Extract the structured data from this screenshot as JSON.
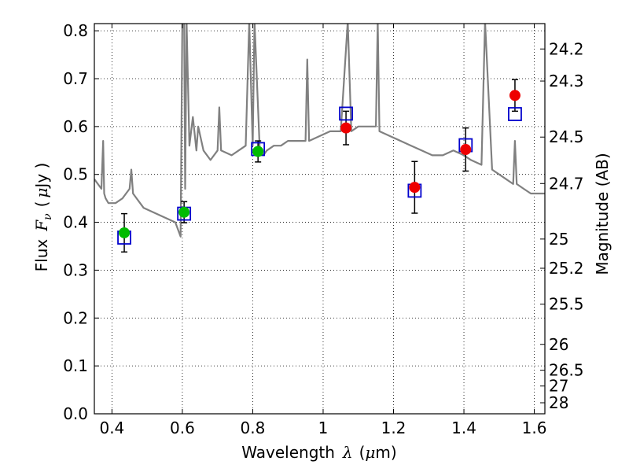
{
  "chart_data": {
    "type": "scatter",
    "xlabel": {
      "prefix": "Wavelength",
      "symbol": "λ",
      "open": "(",
      "mu": "μ",
      "unit": "m)"
    },
    "ylabel": {
      "prefix": "Flux",
      "symbol": "F",
      "sub": "ν",
      "open": "(",
      "mu": "μ",
      "unit": "Jy )"
    },
    "ylabel_right": "Magnitude (AB)",
    "xlim": [
      0.35,
      1.63
    ],
    "ylim": [
      0.0,
      0.815
    ],
    "x_ticks": [
      0.4,
      0.6,
      0.8,
      1.0,
      1.2,
      1.4,
      1.6
    ],
    "x_tick_labels": [
      "0.4",
      "0.6",
      "0.8",
      "1",
      "1.2",
      "1.4",
      "1.6"
    ],
    "y_ticks": [
      0.0,
      0.1,
      0.2,
      0.3,
      0.4,
      0.5,
      0.6,
      0.7,
      0.8
    ],
    "y_tick_labels": [
      "0.0",
      "0.1",
      "0.2",
      "0.3",
      "0.4",
      "0.5",
      "0.6",
      "0.7",
      "0.8"
    ],
    "right_ticks": [
      {
        "label": "24.2",
        "flux": 0.762
      },
      {
        "label": "24.3",
        "flux": 0.695
      },
      {
        "label": "24.5",
        "flux": 0.578
      },
      {
        "label": "24.7",
        "flux": 0.481
      },
      {
        "label": "25",
        "flux": 0.365
      },
      {
        "label": "25.2",
        "flux": 0.304
      },
      {
        "label": "25.5",
        "flux": 0.229
      },
      {
        "label": "26",
        "flux": 0.145
      },
      {
        "label": "26.5",
        "flux": 0.091
      },
      {
        "label": "27",
        "flux": 0.058
      },
      {
        "label": "28",
        "flux": 0.023
      }
    ],
    "grid": true,
    "series": [
      {
        "kind": "model_spectrum",
        "color": "#808080",
        "x": [
          0.35,
          0.36,
          0.37,
          0.375,
          0.378,
          0.382,
          0.39,
          0.41,
          0.43,
          0.44,
          0.45,
          0.455,
          0.46,
          0.47,
          0.49,
          0.52,
          0.55,
          0.58,
          0.595,
          0.6,
          0.605,
          0.608,
          0.612,
          0.62,
          0.63,
          0.64,
          0.645,
          0.66,
          0.68,
          0.7,
          0.705,
          0.71,
          0.74,
          0.76,
          0.78,
          0.79,
          0.8,
          0.805,
          0.82,
          0.83,
          0.84,
          0.86,
          0.88,
          0.9,
          0.92,
          0.95,
          0.955,
          0.96,
          0.99,
          1.02,
          1.05,
          1.07,
          1.08,
          1.1,
          1.12,
          1.15,
          1.155,
          1.16,
          1.19,
          1.22,
          1.25,
          1.28,
          1.31,
          1.34,
          1.37,
          1.4,
          1.42,
          1.45,
          1.46,
          1.48,
          1.5,
          1.52,
          1.54,
          1.545,
          1.55,
          1.57,
          1.59,
          1.61,
          1.63
        ],
        "y": [
          0.49,
          0.48,
          0.47,
          0.57,
          0.46,
          0.45,
          0.44,
          0.44,
          0.45,
          0.46,
          0.47,
          0.51,
          0.46,
          0.45,
          0.43,
          0.42,
          0.41,
          0.4,
          0.37,
          0.82,
          0.82,
          0.47,
          0.82,
          0.56,
          0.62,
          0.55,
          0.6,
          0.55,
          0.53,
          0.55,
          0.64,
          0.55,
          0.54,
          0.55,
          0.56,
          0.82,
          0.56,
          0.82,
          0.55,
          0.54,
          0.55,
          0.56,
          0.56,
          0.57,
          0.57,
          0.57,
          0.74,
          0.57,
          0.58,
          0.59,
          0.59,
          0.82,
          0.59,
          0.6,
          0.6,
          0.6,
          0.82,
          0.59,
          0.58,
          0.57,
          0.56,
          0.55,
          0.54,
          0.54,
          0.55,
          0.54,
          0.53,
          0.52,
          0.82,
          0.51,
          0.5,
          0.49,
          0.48,
          0.57,
          0.48,
          0.47,
          0.46,
          0.46,
          0.46
        ]
      },
      {
        "kind": "model_photometry",
        "marker": "open_square",
        "color": "#0000cc",
        "x": [
          0.435,
          0.605,
          0.815,
          1.065,
          1.26,
          1.405,
          1.545
        ],
        "y": [
          0.368,
          0.418,
          0.553,
          0.627,
          0.466,
          0.561,
          0.626
        ]
      },
      {
        "kind": "observed_optical",
        "marker": "filled_circle",
        "color": "#00bb00",
        "x": [
          0.435,
          0.605,
          0.815
        ],
        "y": [
          0.378,
          0.421,
          0.548
        ],
        "yerr": [
          0.04,
          0.022,
          0.022
        ]
      },
      {
        "kind": "observed_nir",
        "marker": "filled_circle",
        "color": "#ee0000",
        "x": [
          1.065,
          1.26,
          1.405,
          1.545
        ],
        "y": [
          0.597,
          0.473,
          0.552,
          0.665
        ],
        "yerr": [
          0.035,
          0.054,
          0.045,
          0.033
        ]
      }
    ]
  }
}
